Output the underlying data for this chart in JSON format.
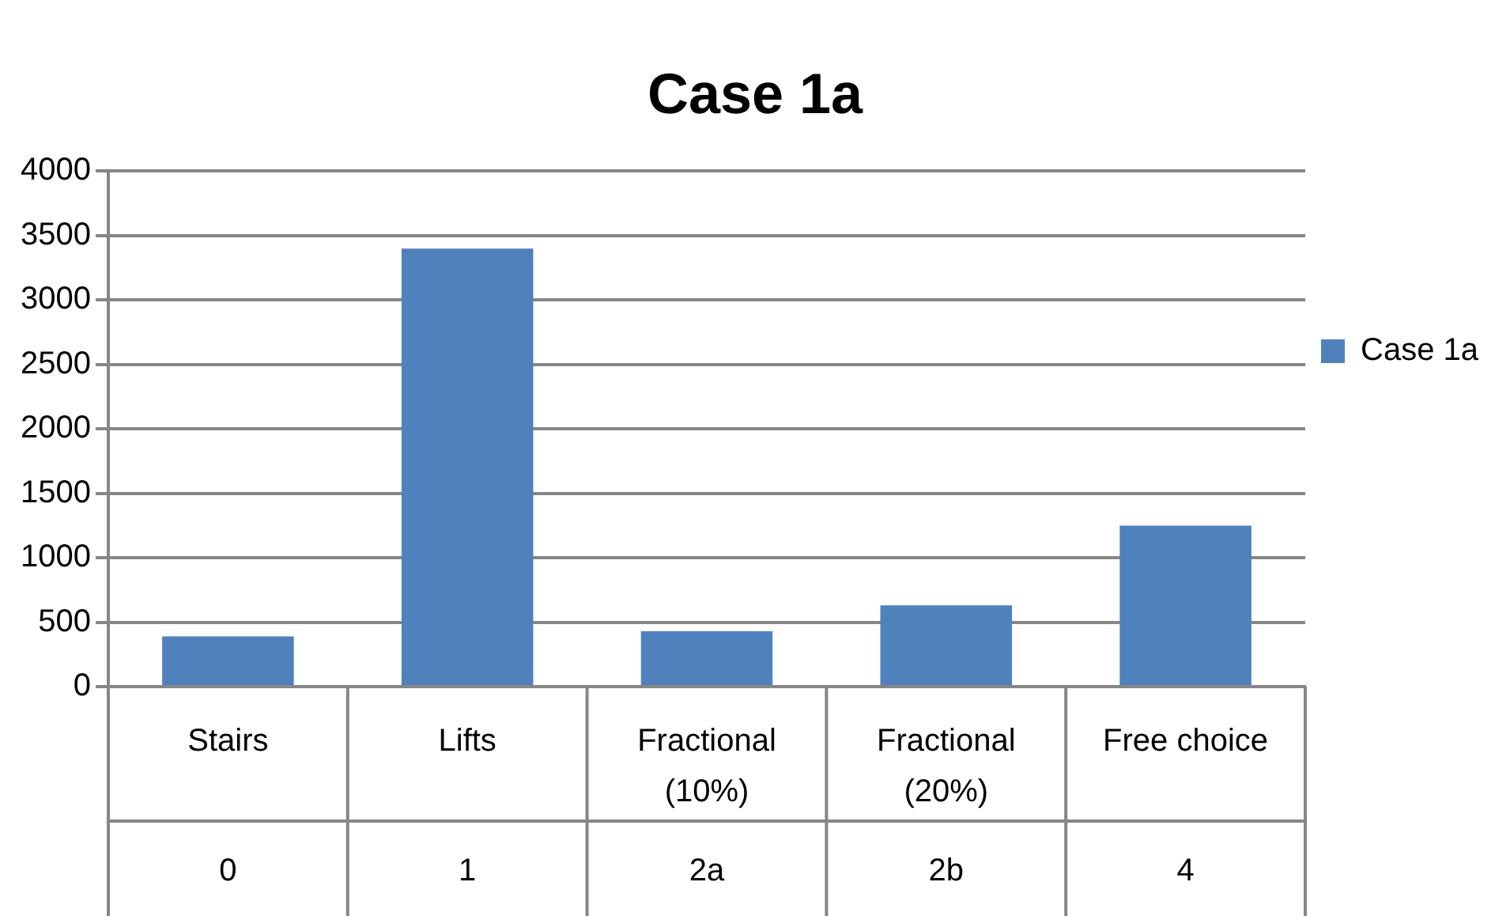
{
  "chart_data": {
    "type": "bar",
    "title": "Case 1a",
    "categories": [
      "Stairs",
      "Lifts",
      "Fractional (10%)",
      "Fractional (20%)",
      "Free choice"
    ],
    "series": [
      {
        "name": "Case 1a",
        "color": "#4f81bd",
        "values": [
          390,
          3400,
          430,
          630,
          1250
        ]
      }
    ],
    "annotations": [
      "0",
      "1",
      "2a",
      "2b",
      "4"
    ],
    "ylim": [
      0,
      4000
    ],
    "yticks": [
      0,
      500,
      1000,
      1500,
      2000,
      2500,
      3000,
      3500,
      4000
    ],
    "grid": "y",
    "legend": "right"
  }
}
